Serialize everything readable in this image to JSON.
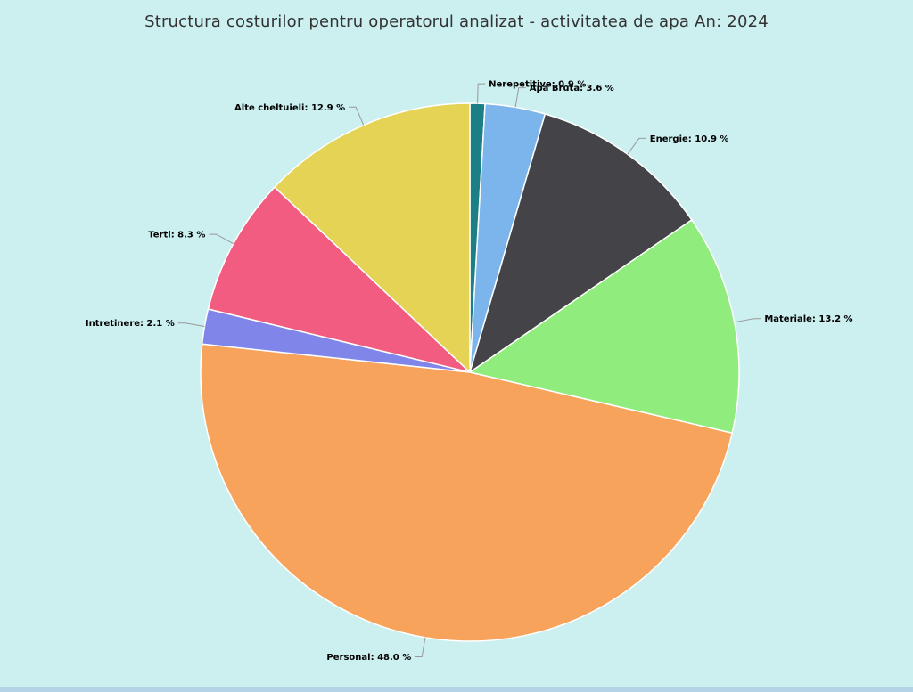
{
  "chart_data": {
    "type": "pie",
    "title": "Structura costurilor pentru operatorul analizat - activitatea de apa An: 2024",
    "legend": "none",
    "slices": [
      {
        "name": "Nerepetitive",
        "value": 0.9,
        "label": "Nerepetitive: 0.9 %",
        "color": "#1b7f85"
      },
      {
        "name": "Apa Bruta",
        "value": 3.6,
        "label": "Apa Bruta: 3.6 %",
        "color": "#7cb5ec"
      },
      {
        "name": "Energie",
        "value": 10.9,
        "label": "Energie: 10.9 %",
        "color": "#434348"
      },
      {
        "name": "Materiale",
        "value": 13.2,
        "label": "Materiale: 13.2 %",
        "color": "#90ed7d"
      },
      {
        "name": "Personal",
        "value": 48.0,
        "label": "Personal: 48.0 %",
        "color": "#f7a35c"
      },
      {
        "name": "Intretinere",
        "value": 2.1,
        "label": "Intretinere: 2.1 %",
        "color": "#8085e9"
      },
      {
        "name": "Terti",
        "value": 8.3,
        "label": "Terti: 8.3 %",
        "color": "#f15c80"
      },
      {
        "name": "Alte cheltuieli",
        "value": 12.9,
        "label": "Alte cheltuieli: 12.9 %",
        "color": "#e4d354"
      }
    ]
  }
}
